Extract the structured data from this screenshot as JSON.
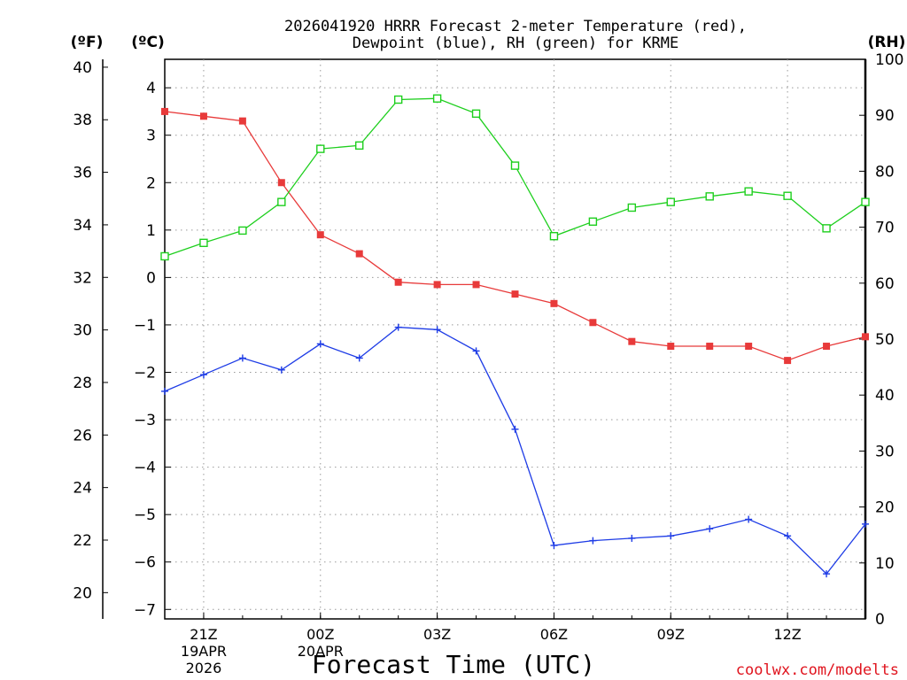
{
  "chart_data": {
    "type": "line",
    "title_line1": "2026041920 HRRR Forecast 2-meter Temperature (red),",
    "title_line2": "Dewpoint (blue), RH (green) for KRME",
    "xlabel": "Forecast Time (UTC)",
    "credit": "coolwx.com/modelts",
    "units": {
      "fahrenheit": "(ºF)",
      "celsius": "(ºC)",
      "rh": "(RH)"
    },
    "x_hours": [
      20,
      21,
      22,
      23,
      24,
      25,
      26,
      27,
      28,
      29,
      30,
      31,
      32,
      33,
      34,
      35,
      36,
      37,
      38
    ],
    "xlim": [
      20,
      38
    ],
    "x_ticks": [
      {
        "hour": 21,
        "lines": [
          "21Z",
          "19APR",
          "2026"
        ]
      },
      {
        "hour": 24,
        "lines": [
          "00Z",
          "20APR"
        ]
      },
      {
        "hour": 27,
        "lines": [
          "03Z"
        ]
      },
      {
        "hour": 30,
        "lines": [
          "06Z"
        ]
      },
      {
        "hour": 33,
        "lines": [
          "09Z"
        ]
      },
      {
        "hour": 36,
        "lines": [
          "12Z"
        ]
      }
    ],
    "y_celsius": {
      "ylim": [
        -7.2,
        4.6
      ],
      "ticks": [
        -7,
        -6,
        -5,
        -4,
        -3,
        -2,
        -1,
        0,
        1,
        2,
        3,
        4
      ]
    },
    "y_fahrenheit": {
      "ylim": [
        19.0,
        40.3
      ],
      "ticks": [
        20,
        22,
        24,
        26,
        28,
        30,
        32,
        34,
        36,
        38,
        40
      ]
    },
    "y_rh": {
      "ylim": [
        0,
        100
      ],
      "ticks": [
        0,
        10,
        20,
        30,
        40,
        50,
        60,
        70,
        80,
        90,
        100
      ]
    },
    "series": [
      {
        "name": "Temperature",
        "axis": "celsius",
        "color": "#e83a3a",
        "marker": "filled-square",
        "values": [
          3.5,
          3.4,
          3.3,
          2.0,
          0.9,
          0.5,
          -0.1,
          -0.15,
          -0.15,
          -0.35,
          -0.55,
          -0.95,
          -1.35,
          -1.45,
          -1.45,
          -1.45,
          -1.75,
          -1.45,
          -1.25
        ]
      },
      {
        "name": "Dewpoint",
        "axis": "celsius",
        "color": "#1e3ce6",
        "marker": "plus",
        "values": [
          -2.4,
          -2.05,
          -1.7,
          -1.95,
          -1.4,
          -1.7,
          -1.05,
          -1.1,
          -1.55,
          -3.2,
          -5.65,
          -5.55,
          -5.5,
          -5.45,
          -5.3,
          -5.1,
          -5.45,
          -6.25,
          -5.2
        ]
      },
      {
        "name": "RH",
        "axis": "rh",
        "color": "#1ecf1e",
        "marker": "open-square",
        "values": [
          64.8,
          67.2,
          69.4,
          74.5,
          84.0,
          84.6,
          92.8,
          93.0,
          90.3,
          81.0,
          68.4,
          71.0,
          73.5,
          74.5,
          75.5,
          76.4,
          75.6,
          69.8,
          74.5
        ]
      }
    ]
  }
}
